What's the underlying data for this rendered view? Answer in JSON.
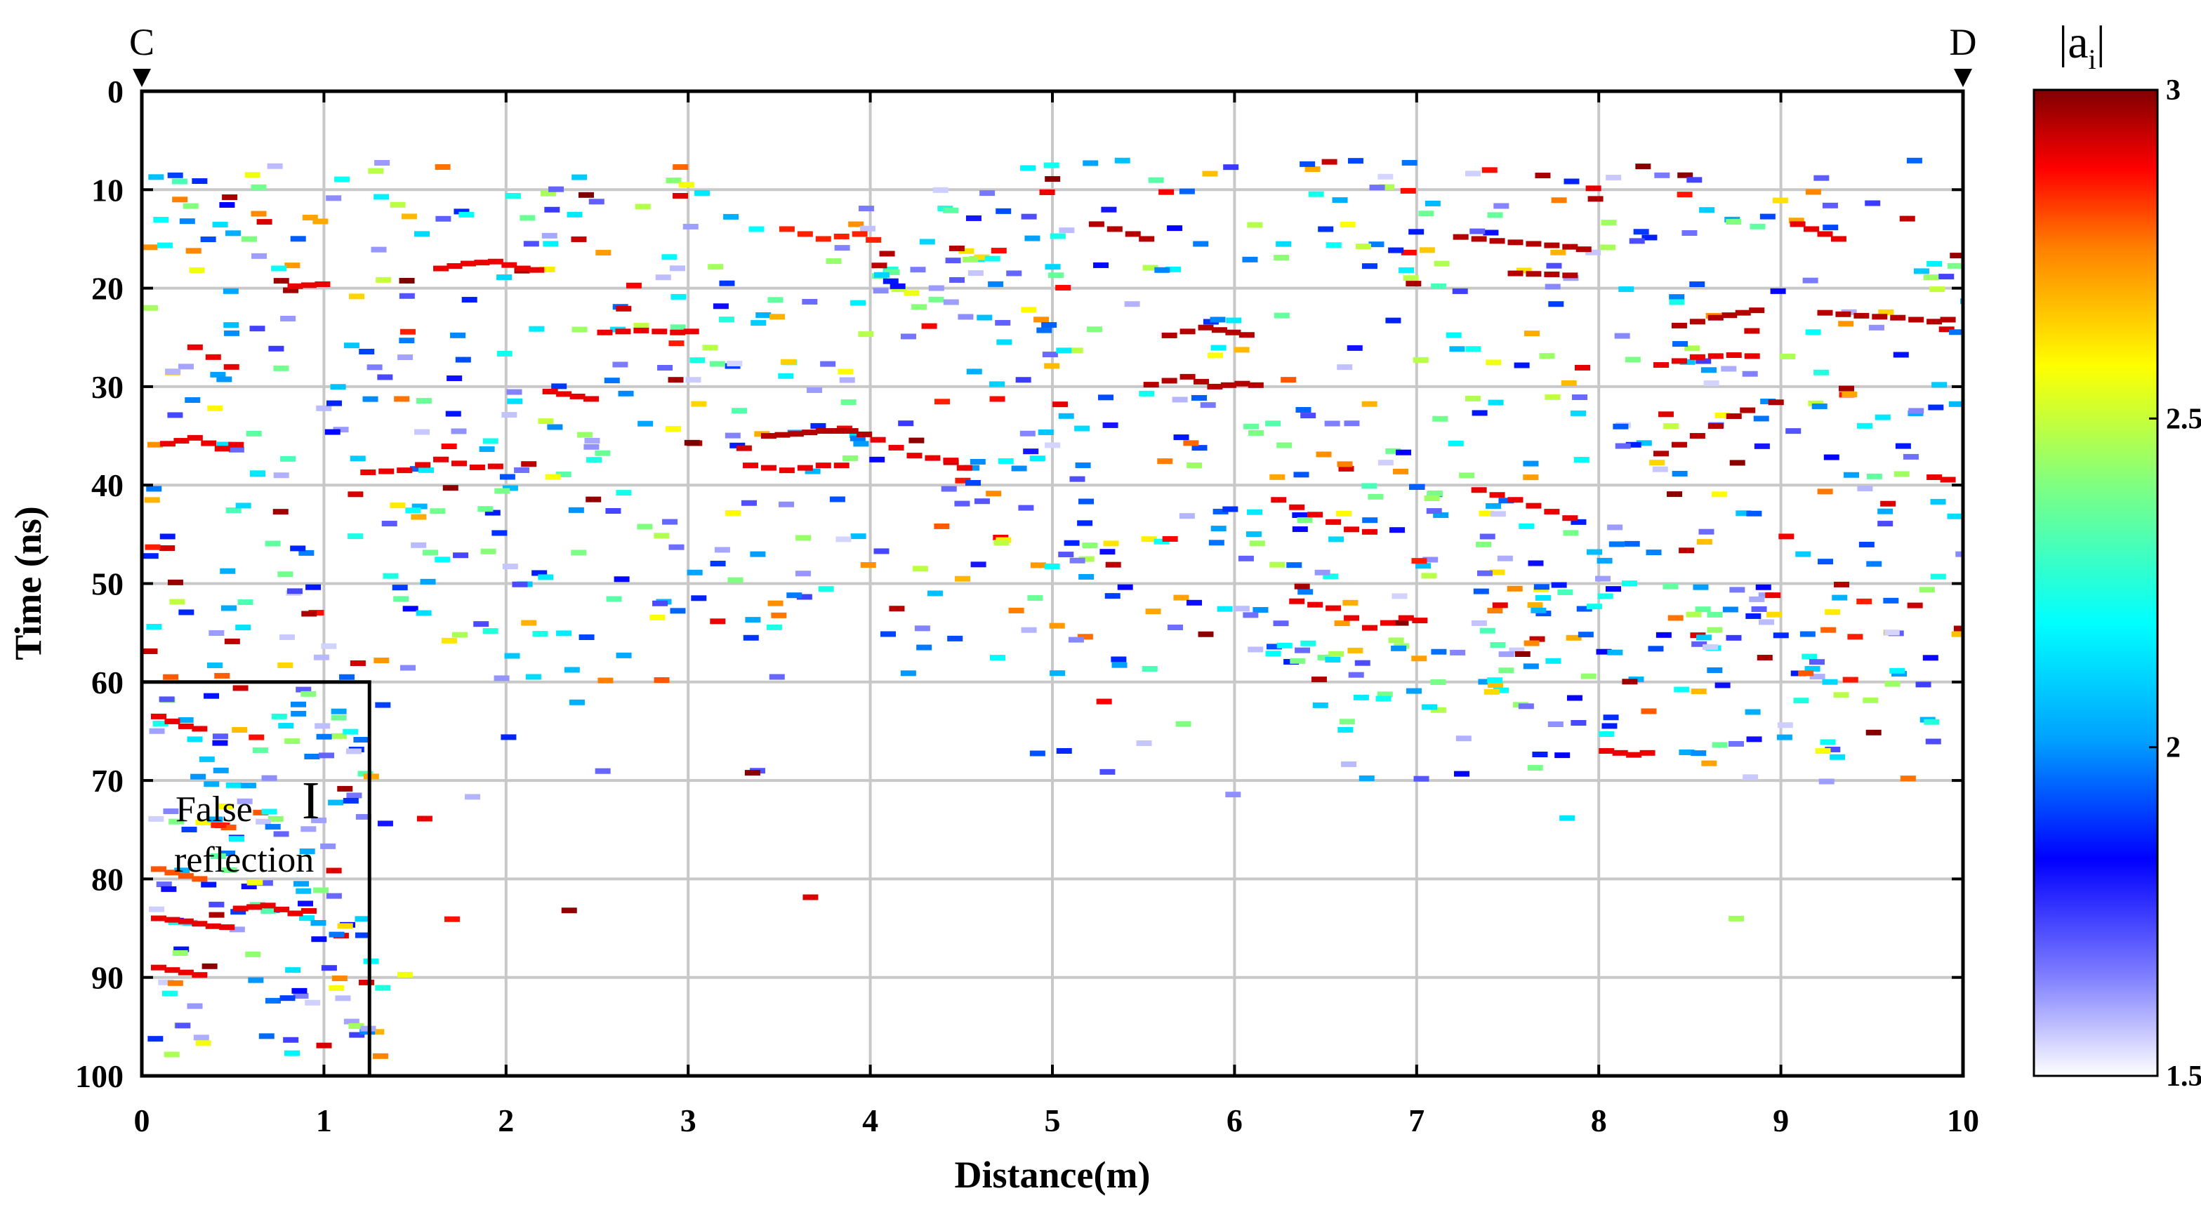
{
  "chart_data": {
    "type": "heatmap",
    "xlabel": "Distance(m)",
    "ylabel": "Time (ns)",
    "xlim": [
      0,
      10
    ],
    "ylim": [
      0,
      100
    ],
    "y_inverted": true,
    "grid": true,
    "x_ticks": [
      "0",
      "1",
      "2",
      "3",
      "4",
      "5",
      "6",
      "7",
      "8",
      "9",
      "10"
    ],
    "y_ticks": [
      "0",
      "10",
      "20",
      "30",
      "40",
      "50",
      "60",
      "70",
      "80",
      "90",
      "100"
    ],
    "markers": [
      {
        "label": "C",
        "x": 0
      },
      {
        "label": "D",
        "x": 10
      }
    ],
    "annotation": {
      "roman": "I",
      "lines": [
        "False",
        "reflection"
      ],
      "region": {
        "x": [
          0,
          1.25
        ],
        "y": [
          60,
          100
        ]
      }
    },
    "colorbar": {
      "title_main": "|a",
      "title_sub": "i",
      "title_end": "|",
      "range": [
        1.5,
        3
      ],
      "ticks": [
        "1.5",
        "2",
        "2.5",
        "3"
      ],
      "colormap": "jet"
    },
    "traces": [
      {
        "v": 2.9,
        "pts": [
          [
            0.1,
            35.8
          ],
          [
            0.25,
            35.2
          ],
          [
            0.4,
            36.3
          ],
          [
            0.55,
            35.5
          ]
        ]
      },
      {
        "v": 2.9,
        "pts": [
          [
            0.25,
            26
          ],
          [
            0.35,
            27
          ],
          [
            0.45,
            28
          ],
          [
            0.55,
            29
          ]
        ]
      },
      {
        "v": 2.9,
        "pts": [
          [
            0.8,
            19.8
          ],
          [
            0.95,
            19.6
          ],
          [
            1.05,
            21
          ]
        ]
      },
      {
        "v": 2.9,
        "pts": [
          [
            1.2,
            38.7
          ],
          [
            1.4,
            38.5
          ],
          [
            1.6,
            37.4
          ],
          [
            1.8,
            38.2
          ],
          [
            2.0,
            38
          ]
        ]
      },
      {
        "v": 2.9,
        "pts": [
          [
            1.6,
            18
          ],
          [
            1.75,
            17.5
          ],
          [
            1.9,
            17.3
          ],
          [
            2.05,
            18
          ],
          [
            2.2,
            18.3
          ]
        ]
      },
      {
        "v": 2.95,
        "pts": [
          [
            3.4,
            35
          ],
          [
            3.55,
            34.8
          ],
          [
            3.7,
            34.5
          ],
          [
            3.85,
            34.5
          ],
          [
            4.0,
            35.2
          ]
        ]
      },
      {
        "v": 2.9,
        "pts": [
          [
            3.3,
            38
          ],
          [
            3.5,
            38.5
          ],
          [
            3.7,
            38
          ],
          [
            3.9,
            38
          ]
        ]
      },
      {
        "v": 2.85,
        "pts": [
          [
            3.5,
            14
          ],
          [
            3.7,
            15
          ],
          [
            3.9,
            14.5
          ],
          [
            4.05,
            15.7
          ]
        ]
      },
      {
        "v": 2.9,
        "pts": [
          [
            2.5,
            24.5
          ],
          [
            2.7,
            24.3
          ],
          [
            2.9,
            24.5
          ],
          [
            3.05,
            24.3
          ]
        ]
      },
      {
        "v": 2.95,
        "pts": [
          [
            5.2,
            13.5
          ],
          [
            5.4,
            14.5
          ],
          [
            5.55,
            15.5
          ]
        ]
      },
      {
        "v": 2.95,
        "pts": [
          [
            7.2,
            14.8
          ],
          [
            7.4,
            15.2
          ],
          [
            7.6,
            15.5
          ],
          [
            7.8,
            15.8
          ],
          [
            7.95,
            16.3
          ]
        ]
      },
      {
        "v": 2.95,
        "pts": [
          [
            7.5,
            18.5
          ],
          [
            7.7,
            18.6
          ],
          [
            7.9,
            18.8
          ]
        ]
      },
      {
        "v": 2.95,
        "pts": [
          [
            8.4,
            23.8
          ],
          [
            8.6,
            23
          ],
          [
            8.75,
            22.5
          ],
          [
            8.9,
            22
          ]
        ]
      },
      {
        "v": 2.95,
        "pts": [
          [
            9.2,
            22.5
          ],
          [
            9.4,
            22.8
          ],
          [
            9.6,
            23
          ],
          [
            9.8,
            23.4
          ],
          [
            9.95,
            23
          ]
        ]
      },
      {
        "v": 2.9,
        "pts": [
          [
            8.3,
            27.8
          ],
          [
            8.5,
            27
          ],
          [
            8.7,
            26.8
          ],
          [
            8.9,
            27
          ]
        ]
      },
      {
        "v": 2.95,
        "pts": [
          [
            8.3,
            36.8
          ],
          [
            8.5,
            35
          ],
          [
            8.7,
            33
          ],
          [
            8.85,
            31.8
          ]
        ]
      },
      {
        "v": 2.9,
        "pts": [
          [
            7.3,
            40.5
          ],
          [
            7.5,
            41.5
          ],
          [
            7.7,
            42.7
          ],
          [
            7.9,
            44
          ]
        ]
      },
      {
        "v": 2.9,
        "pts": [
          [
            6.2,
            41.5
          ],
          [
            6.4,
            43
          ],
          [
            6.6,
            44.5
          ],
          [
            6.8,
            45
          ]
        ]
      },
      {
        "v": 2.9,
        "pts": [
          [
            6.3,
            51.8
          ],
          [
            6.5,
            52.5
          ],
          [
            6.7,
            54.5
          ],
          [
            6.9,
            53.5
          ],
          [
            7.05,
            54
          ]
        ]
      },
      {
        "v": 2.95,
        "pts": [
          [
            5.5,
            29.8
          ],
          [
            5.7,
            29
          ],
          [
            5.85,
            30
          ],
          [
            6.0,
            29.7
          ],
          [
            6.15,
            30
          ]
        ]
      },
      {
        "v": 2.95,
        "pts": [
          [
            5.6,
            24.8
          ],
          [
            5.8,
            24
          ],
          [
            5.95,
            24.5
          ],
          [
            6.1,
            25
          ]
        ]
      },
      {
        "v": 2.9,
        "pts": [
          [
            4.0,
            35.4
          ],
          [
            4.2,
            37
          ],
          [
            4.4,
            37.5
          ],
          [
            4.55,
            39
          ]
        ]
      },
      {
        "v": 2.9,
        "pts": [
          [
            0.05,
            84
          ],
          [
            0.2,
            84.3
          ],
          [
            0.35,
            84.8
          ],
          [
            0.5,
            85
          ]
        ]
      },
      {
        "v": 2.9,
        "pts": [
          [
            0.05,
            89
          ],
          [
            0.2,
            89.5
          ],
          [
            0.35,
            90
          ]
        ]
      },
      {
        "v": 2.9,
        "pts": [
          [
            0.05,
            63.5
          ],
          [
            0.2,
            64.5
          ],
          [
            0.35,
            65
          ]
        ]
      },
      {
        "v": 2.8,
        "pts": [
          [
            0.05,
            79
          ],
          [
            0.2,
            79.7
          ],
          [
            0.35,
            80.3
          ]
        ]
      },
      {
        "v": 2.9,
        "pts": [
          [
            0.5,
            83
          ],
          [
            0.65,
            82.7
          ],
          [
            0.8,
            83.5
          ],
          [
            0.95,
            83
          ]
        ]
      },
      {
        "v": 2.9,
        "pts": [
          [
            8.0,
            67
          ],
          [
            8.15,
            67.4
          ],
          [
            8.3,
            67
          ]
        ]
      },
      {
        "v": 2.9,
        "pts": [
          [
            5.0,
            31.8
          ],
          [
            5.1,
            32
          ]
        ]
      },
      {
        "v": 2.9,
        "pts": [
          [
            9.8,
            39.2
          ],
          [
            9.95,
            39.7
          ]
        ]
      },
      {
        "v": 2.9,
        "pts": [
          [
            9.05,
            13.5
          ],
          [
            9.2,
            14.5
          ],
          [
            9.35,
            15.5
          ]
        ]
      },
      {
        "v": 2.9,
        "pts": [
          [
            2.2,
            30.5
          ],
          [
            2.35,
            31
          ],
          [
            2.5,
            31.5
          ]
        ]
      },
      {
        "v": 2.95,
        "pts": [
          [
            4.05,
            16.5
          ],
          [
            4.1,
            18.5
          ]
        ]
      }
    ],
    "scatter_seed": 7,
    "scatter_count": 1150
  }
}
